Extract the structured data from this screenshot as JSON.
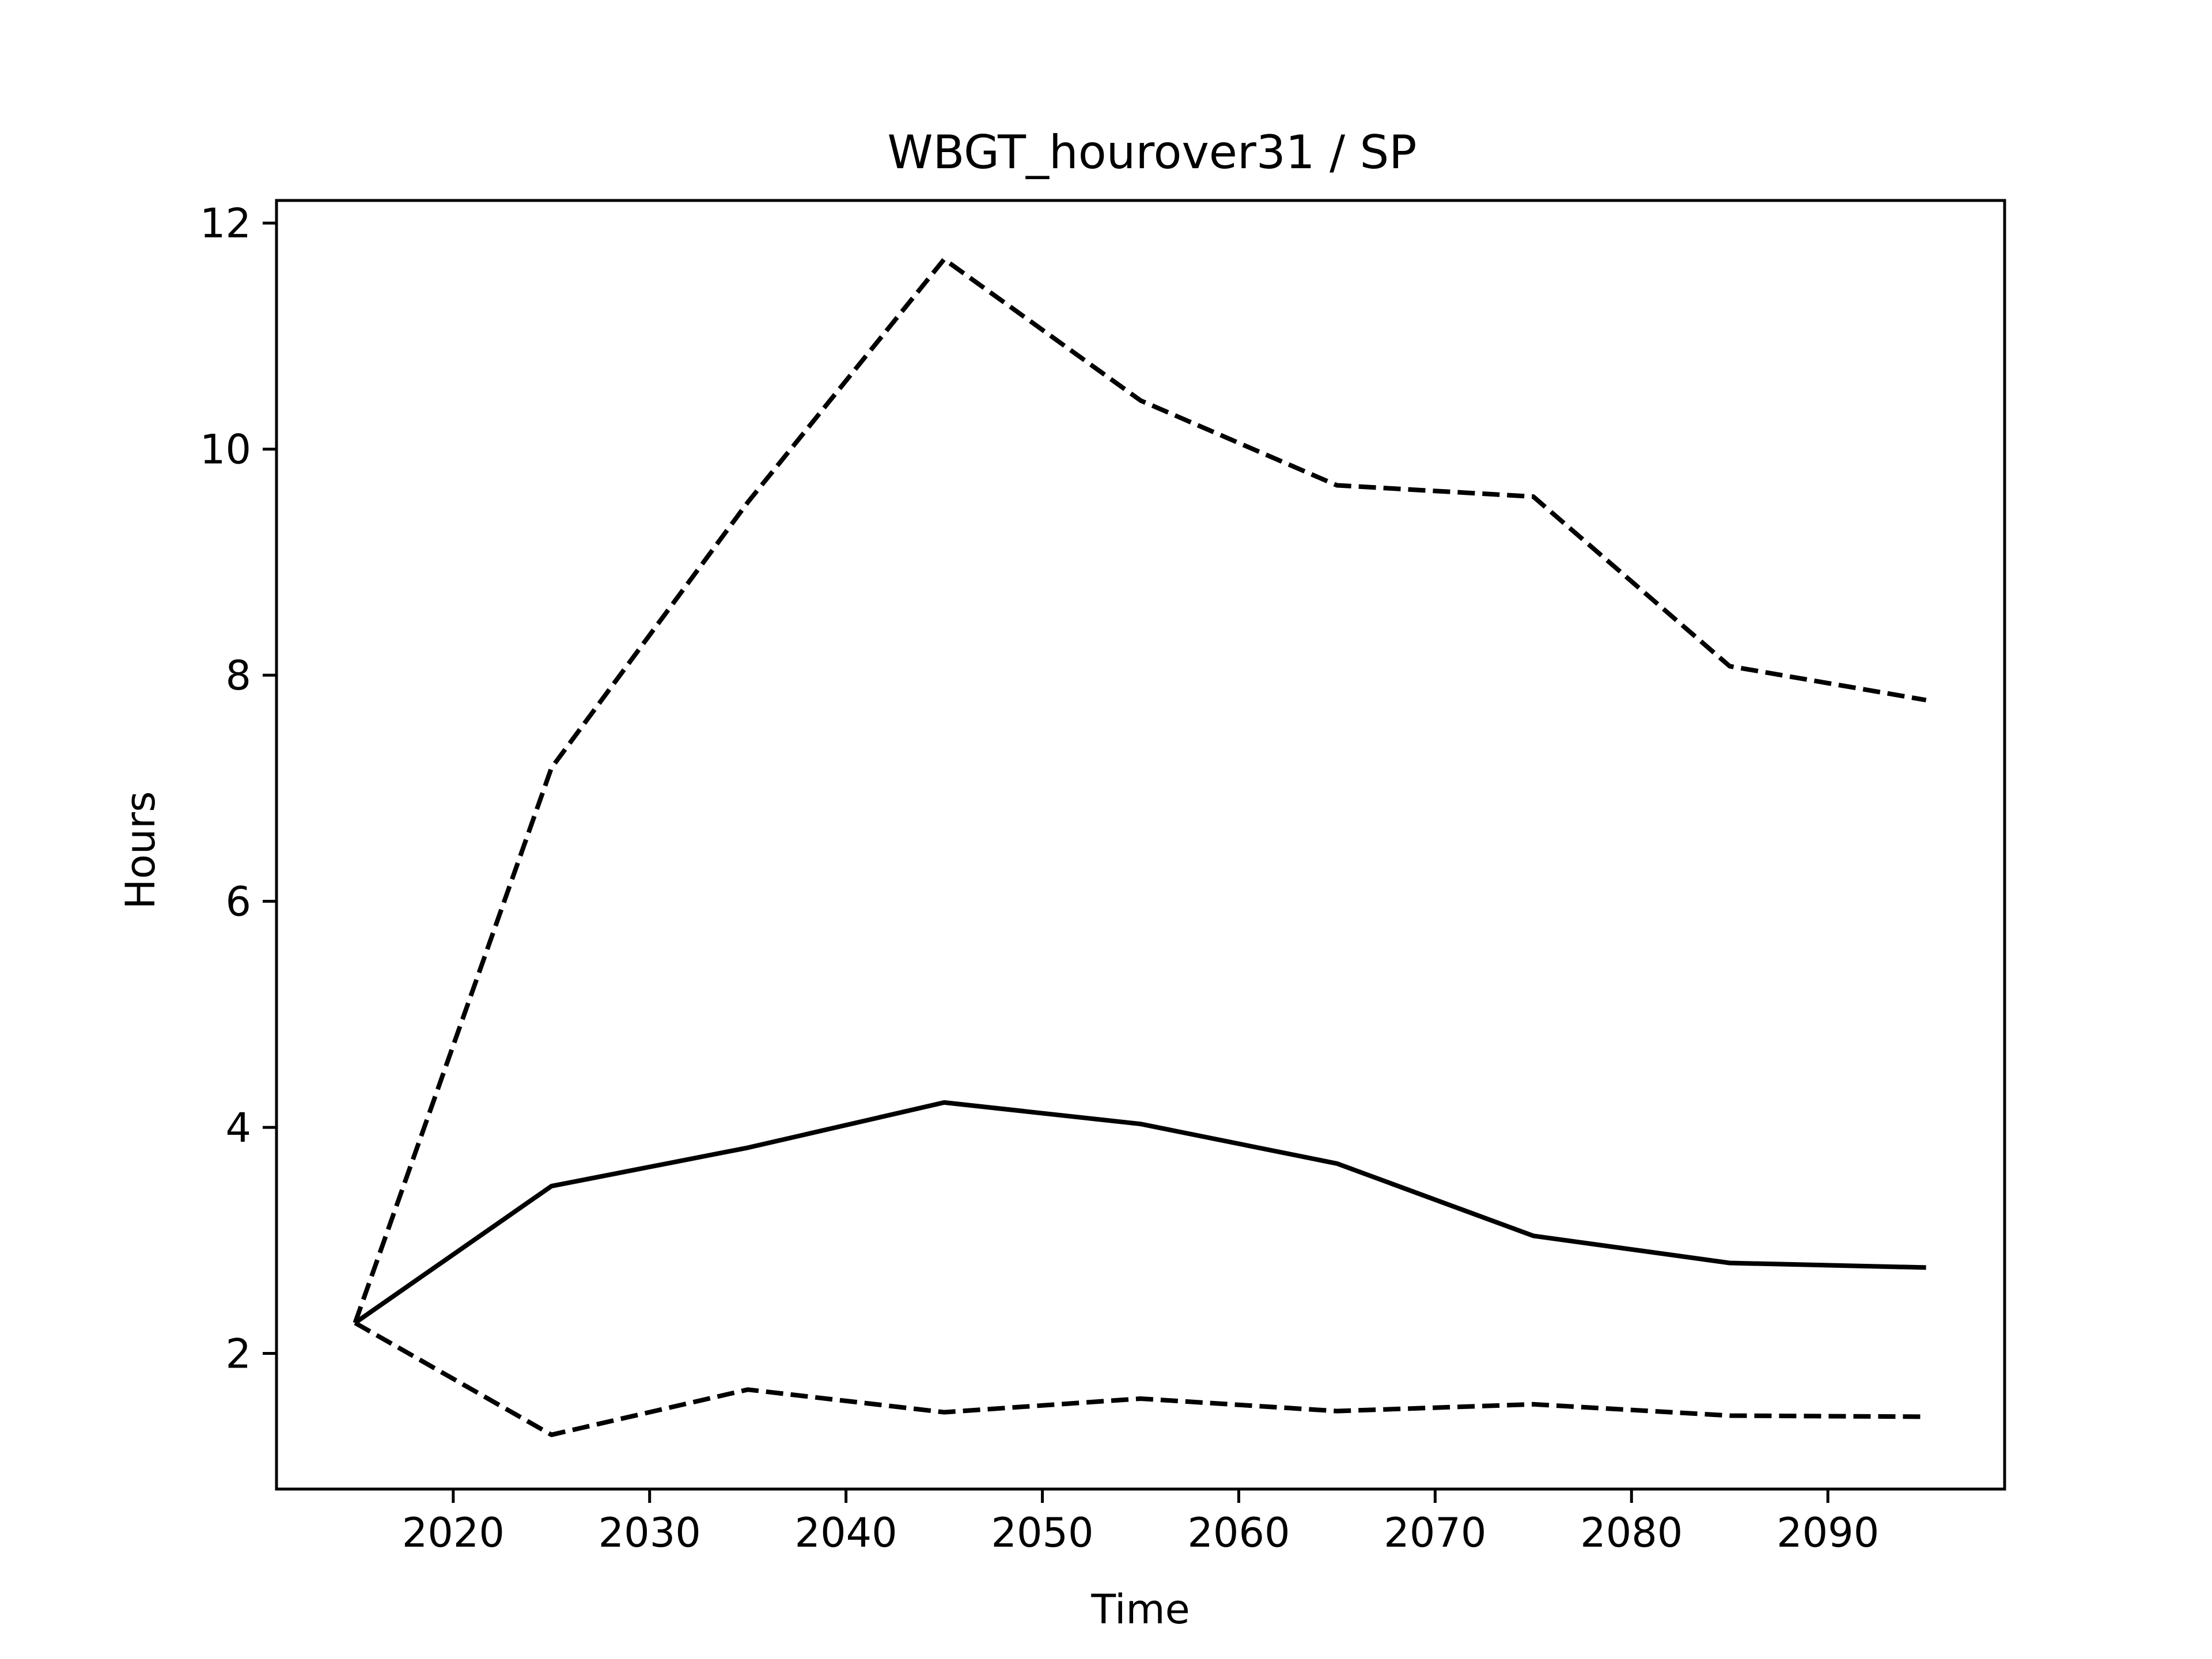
{
  "chart_data": {
    "type": "line",
    "title": "WBGT_hourover31 / SP",
    "xlabel": "Time",
    "ylabel": "Hours",
    "x": [
      2015,
      2025,
      2035,
      2045,
      2055,
      2065,
      2075,
      2085,
      2095
    ],
    "xlim": [
      2011,
      2099
    ],
    "ylim": [
      0.8,
      12.2
    ],
    "xticks": [
      2020,
      2030,
      2040,
      2050,
      2060,
      2070,
      2080,
      2090
    ],
    "yticks": [
      2,
      4,
      6,
      8,
      10,
      12
    ],
    "grid": false,
    "legend": "none",
    "series": [
      {
        "style": "solid",
        "color": "#000000",
        "values": [
          2.27,
          3.48,
          3.82,
          4.22,
          4.03,
          3.68,
          3.04,
          2.8,
          2.76
        ]
      },
      {
        "style": "dashed",
        "color": "#000000",
        "values": [
          2.27,
          7.18,
          9.53,
          11.68,
          10.43,
          9.68,
          9.58,
          8.08,
          7.78
        ]
      },
      {
        "style": "dashed",
        "color": "#000000",
        "values": [
          2.27,
          1.28,
          1.68,
          1.48,
          1.6,
          1.49,
          1.55,
          1.45,
          1.44
        ]
      }
    ]
  }
}
